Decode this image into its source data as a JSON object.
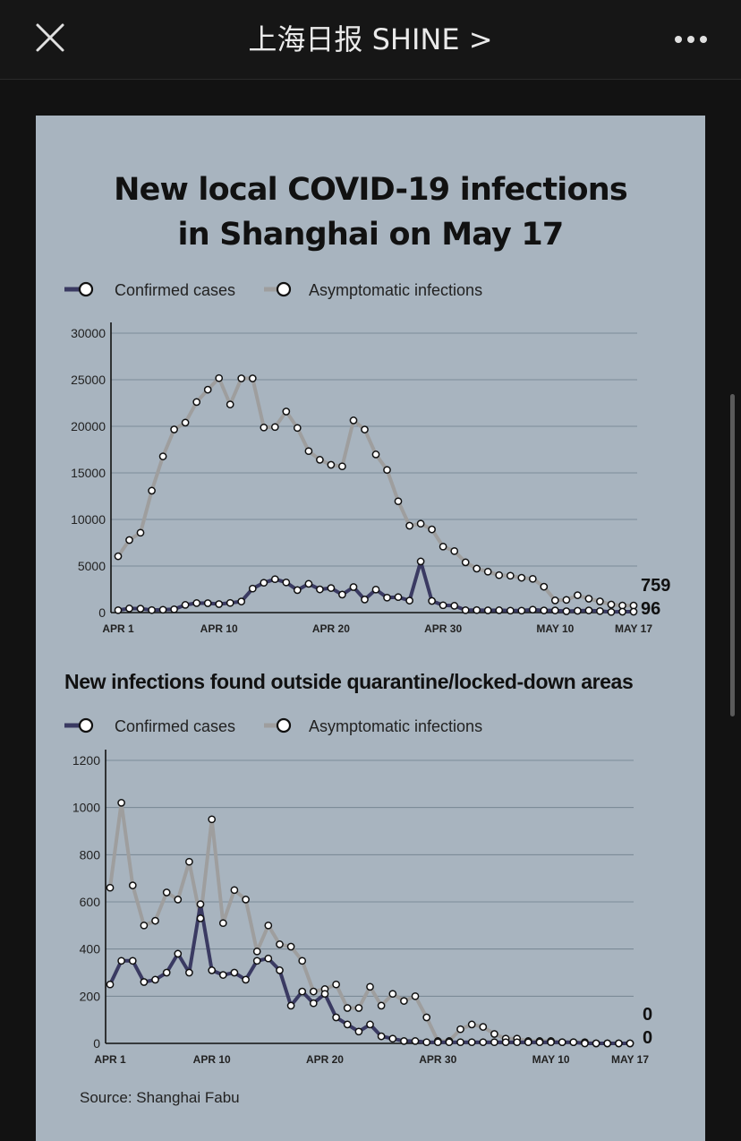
{
  "nav": {
    "title": "上海日报 SHINE >",
    "close_icon": "close-icon",
    "more_icon": "more-horizontal-icon"
  },
  "colors": {
    "card_bg": "#a8b4bf",
    "confirmed": "#3a3a62",
    "asymptomatic": "#9e9e9e"
  },
  "chart_titles": {
    "line1": "New local COVID-19 infections",
    "line2": "in Shanghai on May 17"
  },
  "source": "Source: Shanghai Fabu",
  "chart_data": [
    {
      "type": "line",
      "title": "New local COVID-19 infections in Shanghai on May 17",
      "legend": [
        "Confirmed cases",
        "Asymptomatic infections"
      ],
      "ylim": [
        0,
        30000
      ],
      "yticks": [
        0,
        5000,
        10000,
        15000,
        20000,
        25000,
        30000
      ],
      "xtick_labels": [
        "APR 1",
        "APR 10",
        "APR 20",
        "APR 30",
        "MAY 10",
        "MAY 17"
      ],
      "grid": true,
      "end_labels": [
        "759",
        "96"
      ],
      "series": [
        {
          "name": "Confirmed cases",
          "values": [
            260,
            438,
            425,
            268,
            311,
            358,
            824,
            1015,
            1006,
            914,
            1040,
            1189,
            2573,
            3200,
            3590,
            3238,
            2417,
            3084,
            2494,
            2634,
            1931,
            2736,
            1401,
            2472,
            1606,
            1661,
            1292,
            5487,
            1249,
            788,
            727,
            260,
            274,
            245,
            253,
            215,
            216,
            322,
            234,
            228,
            144,
            194,
            227,
            166,
            69,
            96,
            96
          ]
        },
        {
          "name": "Asymptomatic infections",
          "values": [
            6051,
            7788,
            8581,
            13086,
            16766,
            19660,
            20398,
            22609,
            23937,
            25173,
            22348,
            25141,
            25146,
            19872,
            19923,
            21582,
            19831,
            17332,
            16407,
            15861,
            15698,
            20634,
            19657,
            16983,
            15319,
            11956,
            9330,
            9545,
            8932,
            7084,
            6606,
            5395,
            4722,
            4390,
            4024,
            3961,
            3738,
            3625,
            2780,
            1305,
            1369,
            1869,
            1487,
            1203,
            868,
            759,
            759
          ]
        }
      ]
    },
    {
      "type": "line",
      "title": "New infections found outside quarantine/locked-down areas",
      "legend": [
        "Confirmed cases",
        "Asymptomatic infections"
      ],
      "ylim": [
        0,
        1200
      ],
      "yticks": [
        0,
        200,
        400,
        600,
        800,
        1000,
        1200
      ],
      "xtick_labels": [
        "APR 1",
        "APR 10",
        "APR 20",
        "APR 30",
        "MAY 10",
        "MAY 17"
      ],
      "grid": true,
      "end_labels": [
        "0",
        "0"
      ],
      "series": [
        {
          "name": "Confirmed cases",
          "values": [
            250,
            350,
            350,
            260,
            270,
            300,
            380,
            300,
            590,
            310,
            290,
            300,
            270,
            350,
            360,
            310,
            160,
            220,
            170,
            210,
            110,
            80,
            50,
            80,
            30,
            20,
            10,
            10,
            5,
            5,
            5,
            5,
            5,
            5,
            5,
            5,
            5,
            5,
            5,
            5,
            5,
            5,
            0,
            0,
            0,
            0,
            0
          ]
        },
        {
          "name": "Asymptomatic infections",
          "values": [
            660,
            1020,
            670,
            500,
            520,
            640,
            610,
            770,
            530,
            950,
            510,
            650,
            610,
            390,
            500,
            420,
            410,
            350,
            220,
            230,
            250,
            150,
            150,
            240,
            160,
            210,
            180,
            200,
            110,
            10,
            10,
            60,
            80,
            70,
            40,
            20,
            20,
            10,
            10,
            10,
            5,
            5,
            5,
            0,
            0,
            0,
            0
          ]
        }
      ]
    }
  ]
}
